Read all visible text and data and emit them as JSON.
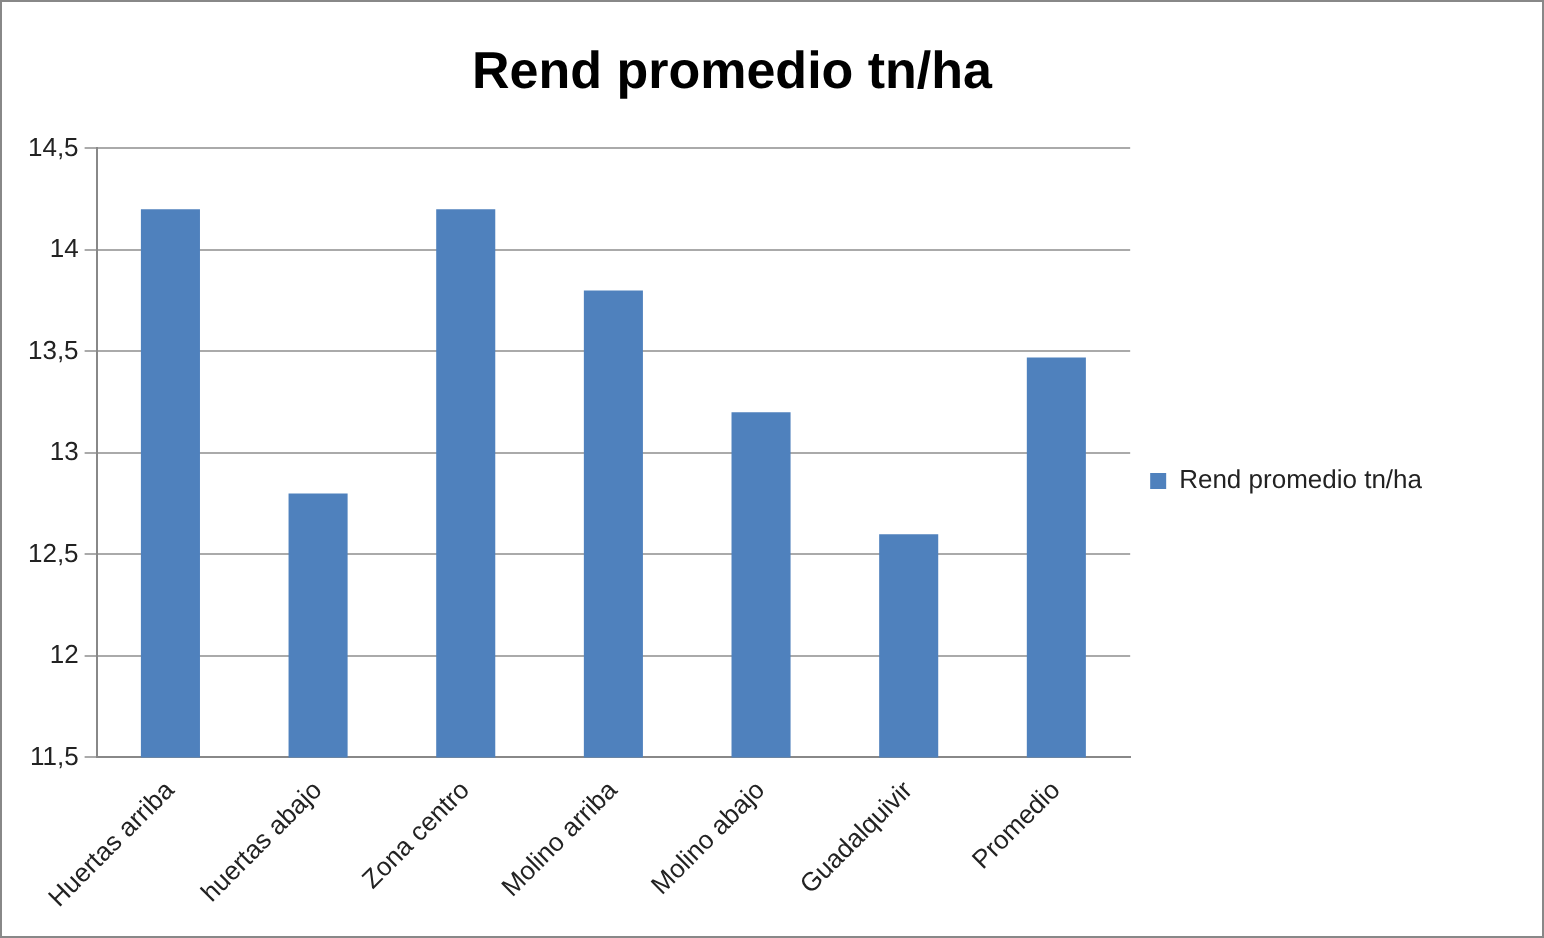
{
  "chart_data": {
    "type": "bar",
    "title": "Rend promedio tn/ha",
    "categories": [
      "Huertas arriba",
      "huertas abajo",
      "Zona centro",
      "Molino arriba",
      "Molino abajo",
      "Guadalquivir",
      "Promedio"
    ],
    "series": [
      {
        "name": "Rend promedio tn/ha",
        "color": "#4f81bd",
        "values": [
          14.2,
          12.8,
          14.2,
          13.8,
          13.2,
          12.6,
          13.47
        ]
      }
    ],
    "ylim": [
      11.5,
      14.5
    ],
    "yticks": [
      {
        "value": 11.5,
        "label": "11,5"
      },
      {
        "value": 12,
        "label": "12"
      },
      {
        "value": 12.5,
        "label": "12,5"
      },
      {
        "value": 13,
        "label": "13"
      },
      {
        "value": 13.5,
        "label": "13,5"
      },
      {
        "value": 14,
        "label": "14"
      },
      {
        "value": 14.5,
        "label": "14,5"
      }
    ],
    "grid": "y",
    "legend": "right"
  }
}
